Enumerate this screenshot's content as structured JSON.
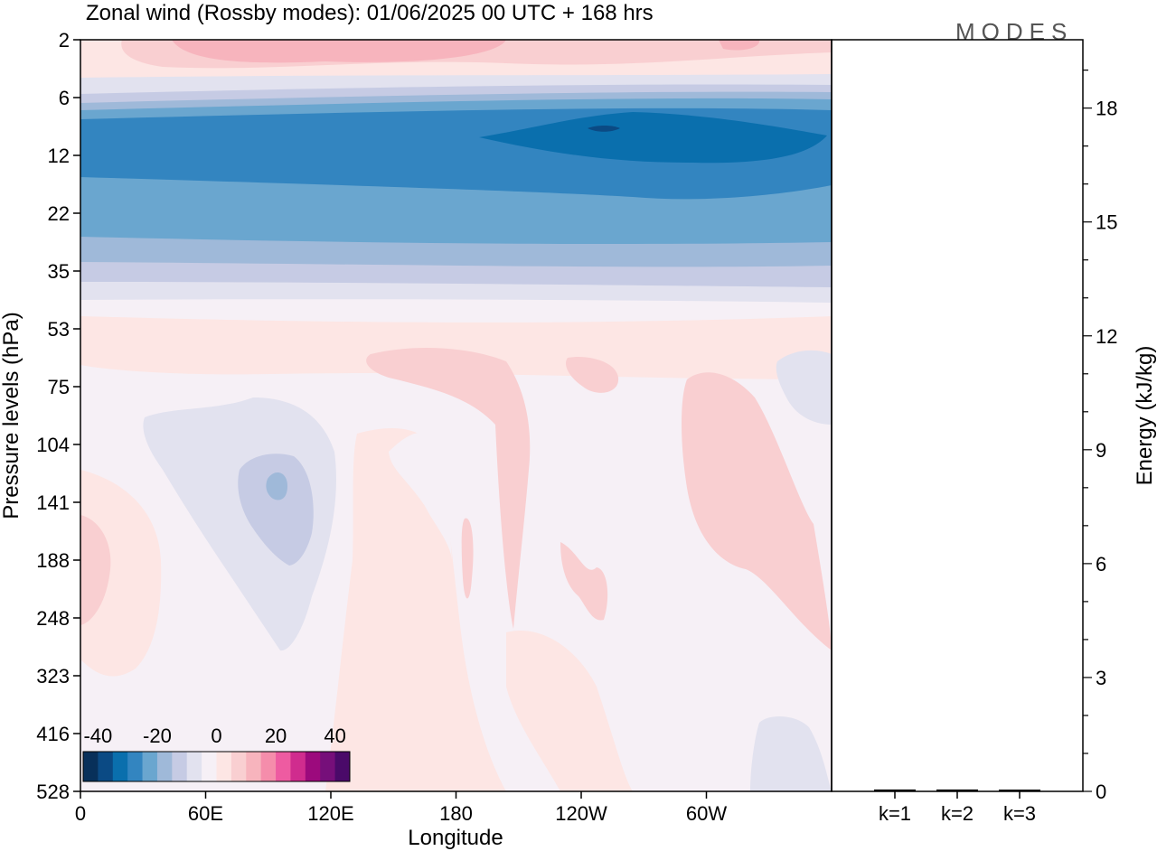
{
  "chart_data": [
    {
      "type": "heatmap",
      "title": "Zonal wind (Rossby modes):  01/06/2025  00 UTC  + 168 hrs",
      "logo": "MODES",
      "xlabel": "Longitude",
      "ylabel": "Pressure levels (hPa)",
      "x_ticks": [
        "0",
        "60E",
        "120E",
        "180",
        "120W",
        "60W"
      ],
      "x_tick_degrees": [
        0,
        60,
        120,
        180,
        240,
        300
      ],
      "xlim": [
        0,
        360
      ],
      "y_ticks": [
        "2",
        "6",
        "12",
        "22",
        "35",
        "53",
        "75",
        "104",
        "141",
        "188",
        "248",
        "323",
        "416",
        "528"
      ],
      "colorbar": {
        "labels": [
          "-40",
          "-20",
          "0",
          "20",
          "40"
        ],
        "levels": [
          -40,
          -35,
          -30,
          -25,
          -20,
          -15,
          -10,
          -5,
          0,
          5,
          10,
          15,
          20,
          25,
          30,
          35,
          40
        ],
        "colors": [
          "#08305a",
          "#0b4a84",
          "#0a6fad",
          "#3385c0",
          "#6aa6cf",
          "#9fb9d9",
          "#c6cbe4",
          "#e2e2ef",
          "#f6f0f6",
          "#fde6e4",
          "#f9cfd1",
          "#f7b4bd",
          "#f58dab",
          "#ee5ba1",
          "#d02c8e",
          "#9c0a7d",
          "#760f7a",
          "#4a0a69"
        ]
      },
      "bands": [
        {
          "level": "2",
          "wind": 10
        },
        {
          "level": "6",
          "wind": -5
        },
        {
          "level": "12",
          "wind": -28
        },
        {
          "level": "22",
          "wind": -22
        },
        {
          "level": "35",
          "wind": -12
        },
        {
          "level": "53",
          "wind": 2
        },
        {
          "level": "75",
          "wind": 3
        },
        {
          "level": "104",
          "wind": 1
        },
        {
          "level": "141",
          "wind": 1
        },
        {
          "level": "188",
          "wind": 1
        },
        {
          "level": "248",
          "wind": 1
        },
        {
          "level": "323",
          "wind": 1
        },
        {
          "level": "416",
          "wind": 1
        },
        {
          "level": "528",
          "wind": 1
        }
      ]
    },
    {
      "type": "bar",
      "ylabel": "Energy (kJ/kg)",
      "categories": [
        "k=1",
        "k=2",
        "k=3"
      ],
      "values": [
        0.05,
        0.05,
        0.03
      ],
      "ylim": [
        0,
        19.8
      ],
      "y_ticks": [
        0,
        3,
        6,
        9,
        12,
        15,
        18
      ]
    }
  ]
}
